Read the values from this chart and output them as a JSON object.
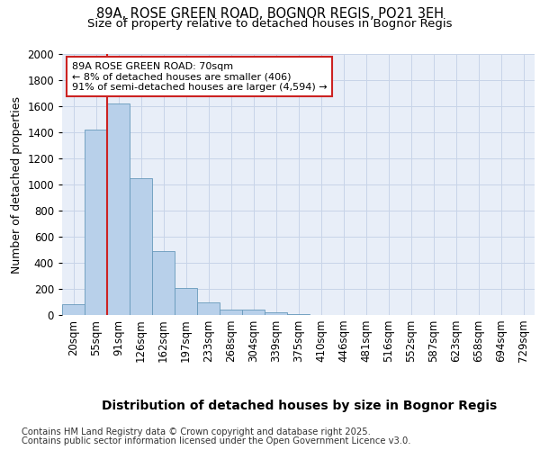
{
  "title1": "89A, ROSE GREEN ROAD, BOGNOR REGIS, PO21 3EH",
  "title2": "Size of property relative to detached houses in Bognor Regis",
  "xlabel": "Distribution of detached houses by size in Bognor Regis",
  "ylabel": "Number of detached properties",
  "categories": [
    "20sqm",
    "55sqm",
    "91sqm",
    "126sqm",
    "162sqm",
    "197sqm",
    "233sqm",
    "268sqm",
    "304sqm",
    "339sqm",
    "375sqm",
    "410sqm",
    "446sqm",
    "481sqm",
    "516sqm",
    "552sqm",
    "587sqm",
    "623sqm",
    "658sqm",
    "694sqm",
    "729sqm"
  ],
  "values": [
    80,
    1420,
    1620,
    1050,
    490,
    205,
    100,
    40,
    40,
    20,
    5,
    3,
    2,
    2,
    2,
    1,
    1,
    1,
    1,
    1,
    1
  ],
  "bar_color": "#b8d0ea",
  "bar_edge_color": "#6699bb",
  "grid_color": "#c8d4e8",
  "bg_color": "#dde6f0",
  "plot_bg_color": "#e8eef8",
  "vline_x": 1.5,
  "vline_color": "#cc2222",
  "annotation_title": "89A ROSE GREEN ROAD: 70sqm",
  "annotation_line1": "← 8% of detached houses are smaller (406)",
  "annotation_line2": "91% of semi-detached houses are larger (4,594) →",
  "annotation_box_facecolor": "#ffffff",
  "annotation_box_edgecolor": "#cc2222",
  "ylim": [
    0,
    2000
  ],
  "yticks": [
    0,
    200,
    400,
    600,
    800,
    1000,
    1200,
    1400,
    1600,
    1800,
    2000
  ],
  "footnote1": "Contains HM Land Registry data © Crown copyright and database right 2025.",
  "footnote2": "Contains public sector information licensed under the Open Government Licence v3.0.",
  "title1_fontsize": 10.5,
  "title2_fontsize": 9.5,
  "xlabel_fontsize": 10,
  "ylabel_fontsize": 9,
  "tick_fontsize": 8.5,
  "annot_fontsize": 8,
  "footnote_fontsize": 7.2
}
